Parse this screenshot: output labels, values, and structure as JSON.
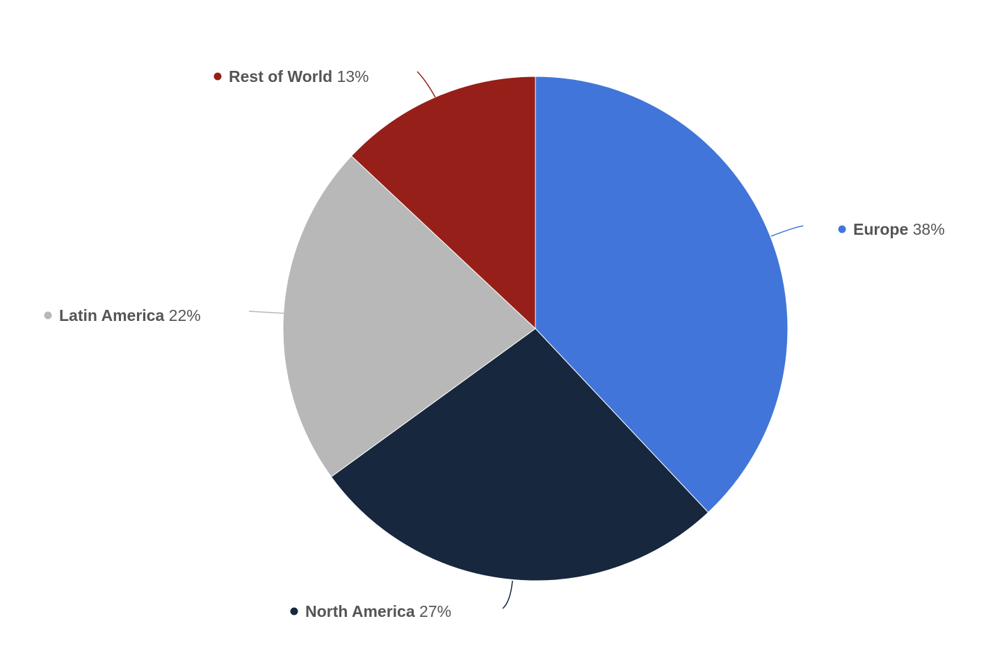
{
  "chart_data": {
    "type": "pie",
    "title": "",
    "slices": [
      {
        "name": "Europe",
        "value": 38,
        "label": "38%",
        "color": "#4175d9"
      },
      {
        "name": "North America",
        "value": 27,
        "label": "27%",
        "color": "#17273d"
      },
      {
        "name": "Latin America",
        "value": 22,
        "label": "22%",
        "color": "#b8b8b8"
      },
      {
        "name": "Rest of World",
        "value": 13,
        "label": "13%",
        "color": "#962019"
      }
    ],
    "legend": "none",
    "data_labels": "outside-with-connectors"
  }
}
